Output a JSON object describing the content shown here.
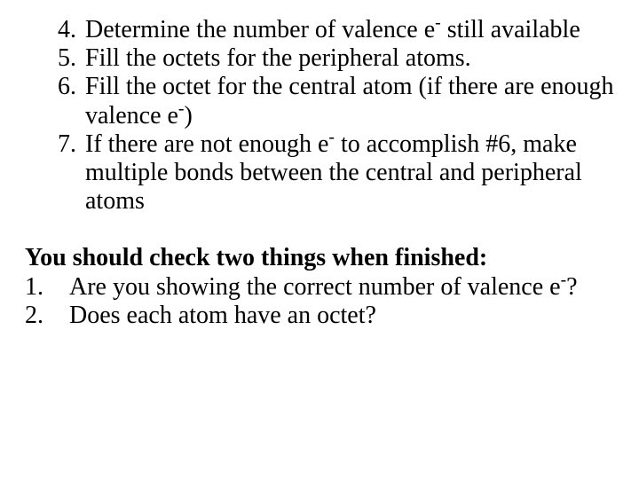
{
  "steps": {
    "4": {
      "num": "4.",
      "a": "Determine the number of valence e",
      "sup": "-",
      "b": " still available"
    },
    "5": {
      "num": "5.",
      "a": "Fill the octets for the peripheral atoms."
    },
    "6": {
      "num": "6.",
      "a": "Fill the octet for the central atom (if there are enough valence e",
      "sup": "-",
      "b": ")"
    },
    "7": {
      "num": "7.",
      "a": "If there are not enough e",
      "sup": "-",
      "b": " to accomplish #6, make multiple bonds between the central and peripheral atoms"
    }
  },
  "check_heading": "You should check two things when finished:",
  "checks": {
    "1": {
      "num": "1.",
      "a": "Are you showing the correct number of valence e",
      "sup": "-",
      "b": "?"
    },
    "2": {
      "num": "2.",
      "a": "Does each atom have an octet?"
    }
  },
  "colors": {
    "text": "#000000",
    "background": "#ffffff"
  },
  "typography": {
    "family": "Times New Roman",
    "size_pt": 21
  }
}
